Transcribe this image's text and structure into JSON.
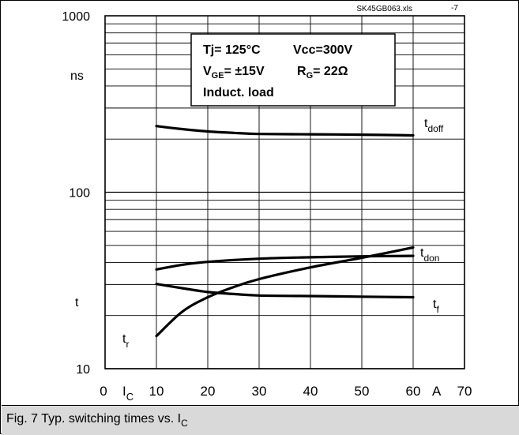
{
  "chart_data": {
    "type": "line",
    "title": "",
    "file_tag": "SK45GB063.xls",
    "file_tag_suffix": "-7",
    "x_axis": {
      "scale": "linear",
      "range": [
        0,
        70
      ],
      "ticks": [
        "0",
        "10",
        "20",
        "30",
        "40",
        "50",
        "60",
        "70"
      ],
      "label_main": "I",
      "label_sub": "C",
      "unit": "A"
    },
    "y_axis": {
      "scale": "log",
      "range": [
        10,
        1000
      ],
      "ticks": [
        "1000",
        "100",
        "10"
      ],
      "unit": "ns",
      "label": "t"
    },
    "conditions": {
      "line1_a": "Tj= 125°C",
      "line1_b": "Vcc=300V",
      "line2_a_main": "V",
      "line2_a_sub": "GE",
      "line2_a_rest": "= ±15V",
      "line2_b_main": "R",
      "line2_b_sub": "G",
      "line2_b_rest": "=  22Ω",
      "line3": "Induct. load"
    },
    "series": [
      {
        "label_main": "t",
        "label_sub": "doff",
        "x": [
          10,
          15,
          20,
          25,
          30,
          40,
          50,
          60
        ],
        "y": [
          237,
          228,
          221,
          217,
          214,
          213,
          212,
          210
        ]
      },
      {
        "label_main": "t",
        "label_sub": "don",
        "x": [
          10,
          15,
          20,
          30,
          40,
          50,
          60
        ],
        "y": [
          36.5,
          38.8,
          40.3,
          42.0,
          42.8,
          43.3,
          43.6
        ]
      },
      {
        "label_main": "t",
        "label_sub": "f",
        "x": [
          10,
          15,
          20,
          25,
          30,
          40,
          50,
          60
        ],
        "y": [
          30.2,
          28.6,
          27.2,
          26.5,
          26.0,
          25.8,
          25.6,
          25.4
        ]
      },
      {
        "label_main": "t",
        "label_sub": "r",
        "x": [
          10,
          15,
          20,
          25,
          30,
          40,
          50,
          60
        ],
        "y": [
          15.3,
          21.0,
          25.4,
          29.0,
          32.2,
          37.5,
          42.5,
          48.6
        ]
      }
    ]
  },
  "caption": {
    "prefix": "Fig. 7 Typ. switching times vs. I",
    "sub": "C"
  }
}
